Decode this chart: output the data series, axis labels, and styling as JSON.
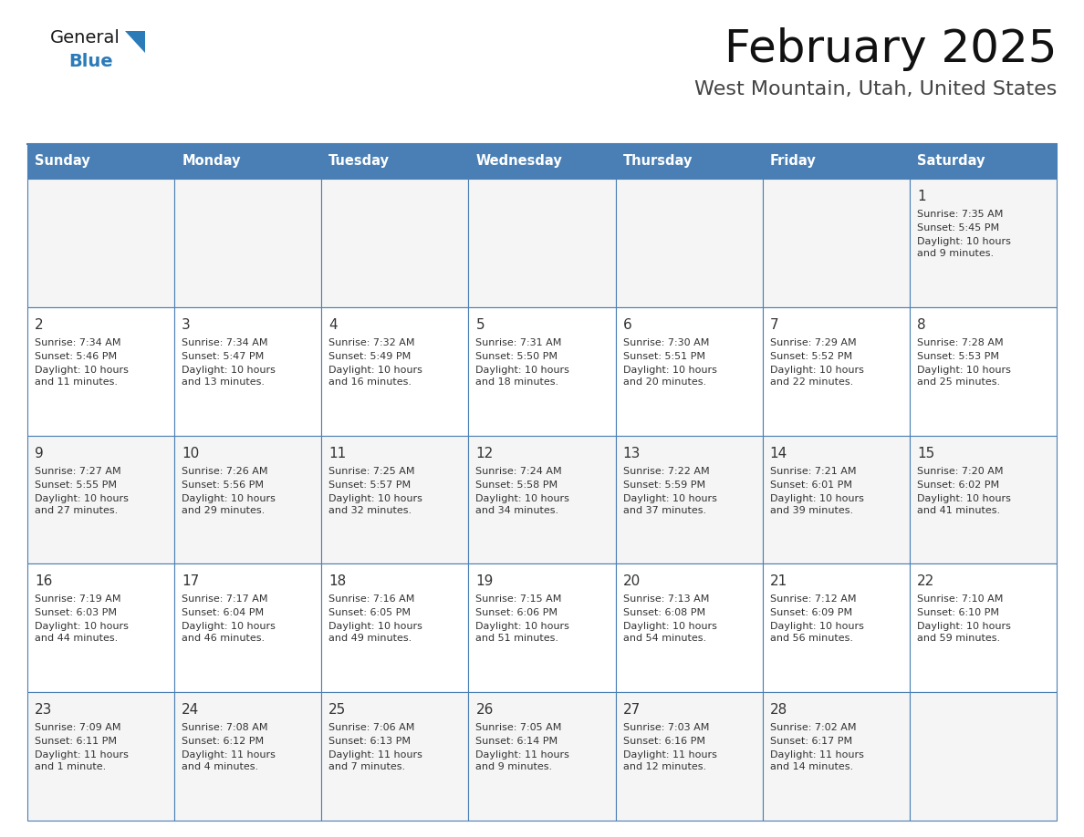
{
  "title": "February 2025",
  "subtitle": "West Mountain, Utah, United States",
  "header_bg": "#4a7fb5",
  "header_text_color": "#ffffff",
  "cell_bg_odd": "#f5f5f5",
  "cell_bg_even": "#ffffff",
  "border_color": "#4a7fb5",
  "text_color": "#333333",
  "title_color": "#111111",
  "subtitle_color": "#444444",
  "days_of_week": [
    "Sunday",
    "Monday",
    "Tuesday",
    "Wednesday",
    "Thursday",
    "Friday",
    "Saturday"
  ],
  "weeks": [
    [
      null,
      null,
      null,
      null,
      null,
      null,
      {
        "day": "1",
        "sunrise": "7:35 AM",
        "sunset": "5:45 PM",
        "daylight_line1": "Daylight: 10 hours",
        "daylight_line2": "and 9 minutes."
      }
    ],
    [
      {
        "day": "2",
        "sunrise": "7:34 AM",
        "sunset": "5:46 PM",
        "daylight_line1": "Daylight: 10 hours",
        "daylight_line2": "and 11 minutes."
      },
      {
        "day": "3",
        "sunrise": "7:34 AM",
        "sunset": "5:47 PM",
        "daylight_line1": "Daylight: 10 hours",
        "daylight_line2": "and 13 minutes."
      },
      {
        "day": "4",
        "sunrise": "7:32 AM",
        "sunset": "5:49 PM",
        "daylight_line1": "Daylight: 10 hours",
        "daylight_line2": "and 16 minutes."
      },
      {
        "day": "5",
        "sunrise": "7:31 AM",
        "sunset": "5:50 PM",
        "daylight_line1": "Daylight: 10 hours",
        "daylight_line2": "and 18 minutes."
      },
      {
        "day": "6",
        "sunrise": "7:30 AM",
        "sunset": "5:51 PM",
        "daylight_line1": "Daylight: 10 hours",
        "daylight_line2": "and 20 minutes."
      },
      {
        "day": "7",
        "sunrise": "7:29 AM",
        "sunset": "5:52 PM",
        "daylight_line1": "Daylight: 10 hours",
        "daylight_line2": "and 22 minutes."
      },
      {
        "day": "8",
        "sunrise": "7:28 AM",
        "sunset": "5:53 PM",
        "daylight_line1": "Daylight: 10 hours",
        "daylight_line2": "and 25 minutes."
      }
    ],
    [
      {
        "day": "9",
        "sunrise": "7:27 AM",
        "sunset": "5:55 PM",
        "daylight_line1": "Daylight: 10 hours",
        "daylight_line2": "and 27 minutes."
      },
      {
        "day": "10",
        "sunrise": "7:26 AM",
        "sunset": "5:56 PM",
        "daylight_line1": "Daylight: 10 hours",
        "daylight_line2": "and 29 minutes."
      },
      {
        "day": "11",
        "sunrise": "7:25 AM",
        "sunset": "5:57 PM",
        "daylight_line1": "Daylight: 10 hours",
        "daylight_line2": "and 32 minutes."
      },
      {
        "day": "12",
        "sunrise": "7:24 AM",
        "sunset": "5:58 PM",
        "daylight_line1": "Daylight: 10 hours",
        "daylight_line2": "and 34 minutes."
      },
      {
        "day": "13",
        "sunrise": "7:22 AM",
        "sunset": "5:59 PM",
        "daylight_line1": "Daylight: 10 hours",
        "daylight_line2": "and 37 minutes."
      },
      {
        "day": "14",
        "sunrise": "7:21 AM",
        "sunset": "6:01 PM",
        "daylight_line1": "Daylight: 10 hours",
        "daylight_line2": "and 39 minutes."
      },
      {
        "day": "15",
        "sunrise": "7:20 AM",
        "sunset": "6:02 PM",
        "daylight_line1": "Daylight: 10 hours",
        "daylight_line2": "and 41 minutes."
      }
    ],
    [
      {
        "day": "16",
        "sunrise": "7:19 AM",
        "sunset": "6:03 PM",
        "daylight_line1": "Daylight: 10 hours",
        "daylight_line2": "and 44 minutes."
      },
      {
        "day": "17",
        "sunrise": "7:17 AM",
        "sunset": "6:04 PM",
        "daylight_line1": "Daylight: 10 hours",
        "daylight_line2": "and 46 minutes."
      },
      {
        "day": "18",
        "sunrise": "7:16 AM",
        "sunset": "6:05 PM",
        "daylight_line1": "Daylight: 10 hours",
        "daylight_line2": "and 49 minutes."
      },
      {
        "day": "19",
        "sunrise": "7:15 AM",
        "sunset": "6:06 PM",
        "daylight_line1": "Daylight: 10 hours",
        "daylight_line2": "and 51 minutes."
      },
      {
        "day": "20",
        "sunrise": "7:13 AM",
        "sunset": "6:08 PM",
        "daylight_line1": "Daylight: 10 hours",
        "daylight_line2": "and 54 minutes."
      },
      {
        "day": "21",
        "sunrise": "7:12 AM",
        "sunset": "6:09 PM",
        "daylight_line1": "Daylight: 10 hours",
        "daylight_line2": "and 56 minutes."
      },
      {
        "day": "22",
        "sunrise": "7:10 AM",
        "sunset": "6:10 PM",
        "daylight_line1": "Daylight: 10 hours",
        "daylight_line2": "and 59 minutes."
      }
    ],
    [
      {
        "day": "23",
        "sunrise": "7:09 AM",
        "sunset": "6:11 PM",
        "daylight_line1": "Daylight: 11 hours",
        "daylight_line2": "and 1 minute."
      },
      {
        "day": "24",
        "sunrise": "7:08 AM",
        "sunset": "6:12 PM",
        "daylight_line1": "Daylight: 11 hours",
        "daylight_line2": "and 4 minutes."
      },
      {
        "day": "25",
        "sunrise": "7:06 AM",
        "sunset": "6:13 PM",
        "daylight_line1": "Daylight: 11 hours",
        "daylight_line2": "and 7 minutes."
      },
      {
        "day": "26",
        "sunrise": "7:05 AM",
        "sunset": "6:14 PM",
        "daylight_line1": "Daylight: 11 hours",
        "daylight_line2": "and 9 minutes."
      },
      {
        "day": "27",
        "sunrise": "7:03 AM",
        "sunset": "6:16 PM",
        "daylight_line1": "Daylight: 11 hours",
        "daylight_line2": "and 12 minutes."
      },
      {
        "day": "28",
        "sunrise": "7:02 AM",
        "sunset": "6:17 PM",
        "daylight_line1": "Daylight: 11 hours",
        "daylight_line2": "and 14 minutes."
      },
      null
    ]
  ],
  "logo_general_color": "#1a1a1a",
  "logo_blue_color": "#2b7bb9",
  "logo_triangle_color": "#2b7bb9",
  "title_fontsize": 36,
  "subtitle_fontsize": 16,
  "header_fontsize": 10.5,
  "day_num_fontsize": 11,
  "cell_text_fontsize": 8
}
